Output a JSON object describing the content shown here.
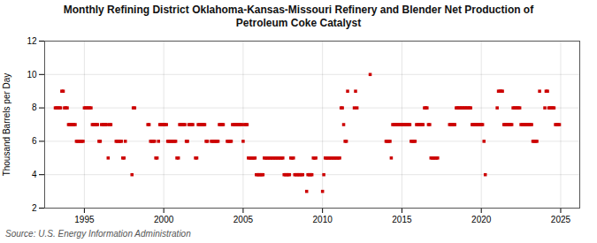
{
  "chart_data": {
    "type": "scatter",
    "title": "Monthly Refining District Oklahoma-Kansas-Missouri Refinery and Blender Net Production of\nPetroleum Coke Catalyst",
    "ylabel": "Thousand Barrels per Day",
    "source": "Source: U.S. Energy Information Administration",
    "color": "#cc0000",
    "marker": "square",
    "grid": true,
    "xlim": [
      1992.5,
      2026.2
    ],
    "xticks": [
      1995,
      2000,
      2005,
      2010,
      2015,
      2020,
      2025
    ],
    "ylim": [
      2,
      12
    ],
    "yticks": [
      2,
      4,
      6,
      8,
      10,
      12
    ],
    "x": [
      1993.17,
      1993.25,
      1993.33,
      1993.42,
      1993.5,
      1993.58,
      1993.67,
      1993.75,
      1993.83,
      1993.92,
      1994.0,
      1994.08,
      1994.17,
      1994.25,
      1994.33,
      1994.42,
      1994.5,
      1994.58,
      1994.67,
      1994.75,
      1994.83,
      1994.92,
      1995.0,
      1995.08,
      1995.17,
      1995.25,
      1995.33,
      1995.42,
      1995.5,
      1995.58,
      1995.67,
      1995.75,
      1995.83,
      1995.92,
      1996.0,
      1996.08,
      1996.17,
      1996.25,
      1996.33,
      1996.42,
      1996.5,
      1996.58,
      1996.67,
      1997.0,
      1997.08,
      1997.17,
      1997.25,
      1997.33,
      1997.42,
      1997.5,
      1997.58,
      1998.0,
      1998.08,
      1998.17,
      1999.0,
      1999.08,
      1999.17,
      1999.25,
      1999.33,
      1999.42,
      1999.5,
      1999.58,
      1999.67,
      1999.75,
      1999.83,
      1999.92,
      2000.0,
      2000.08,
      2000.17,
      2000.25,
      2000.33,
      2000.42,
      2000.5,
      2000.58,
      2000.67,
      2000.75,
      2000.83,
      2000.92,
      2001.0,
      2001.08,
      2001.17,
      2001.25,
      2001.33,
      2001.42,
      2001.5,
      2001.58,
      2001.67,
      2001.75,
      2001.83,
      2002.0,
      2002.08,
      2002.17,
      2002.25,
      2002.33,
      2002.42,
      2002.5,
      2002.58,
      2002.67,
      2002.75,
      2003.0,
      2003.08,
      2003.17,
      2003.25,
      2003.33,
      2003.42,
      2003.5,
      2003.58,
      2003.67,
      2003.75,
      2004.0,
      2004.08,
      2004.17,
      2004.25,
      2004.33,
      2004.42,
      2004.5,
      2004.58,
      2004.67,
      2004.75,
      2004.83,
      2004.92,
      2005.0,
      2005.08,
      2005.17,
      2005.25,
      2005.33,
      2005.42,
      2005.5,
      2005.58,
      2005.67,
      2005.75,
      2005.83,
      2005.92,
      2006.0,
      2006.08,
      2006.17,
      2006.25,
      2006.33,
      2006.42,
      2006.5,
      2006.58,
      2006.67,
      2006.75,
      2006.83,
      2006.92,
      2007.0,
      2007.08,
      2007.17,
      2007.25,
      2007.33,
      2007.42,
      2007.5,
      2007.58,
      2007.67,
      2007.75,
      2007.83,
      2007.92,
      2008.0,
      2008.08,
      2008.17,
      2008.25,
      2008.33,
      2008.42,
      2008.5,
      2008.58,
      2008.67,
      2008.75,
      2009.0,
      2009.08,
      2009.17,
      2009.25,
      2009.33,
      2009.42,
      2009.5,
      2009.58,
      2010.0,
      2010.08,
      2010.17,
      2010.25,
      2010.33,
      2010.42,
      2010.5,
      2010.58,
      2010.67,
      2010.75,
      2010.83,
      2010.92,
      2011.0,
      2011.08,
      2011.17,
      2011.25,
      2011.33,
      2011.42,
      2011.5,
      2011.58,
      2012.0,
      2012.08,
      2012.17,
      2013.0,
      2014.0,
      2014.08,
      2014.17,
      2014.25,
      2014.33,
      2014.42,
      2014.5,
      2014.58,
      2014.67,
      2014.75,
      2014.83,
      2014.92,
      2015.0,
      2015.08,
      2015.17,
      2015.25,
      2015.33,
      2015.42,
      2015.5,
      2015.58,
      2015.67,
      2015.75,
      2015.83,
      2015.92,
      2016.0,
      2016.08,
      2016.17,
      2016.25,
      2016.33,
      2016.42,
      2016.5,
      2016.58,
      2016.67,
      2016.75,
      2016.83,
      2016.92,
      2017.0,
      2017.08,
      2017.17,
      2017.25,
      2018.0,
      2018.08,
      2018.17,
      2018.25,
      2018.33,
      2018.42,
      2018.5,
      2018.58,
      2018.67,
      2018.75,
      2018.83,
      2018.92,
      2019.0,
      2019.08,
      2019.17,
      2019.25,
      2019.33,
      2019.42,
      2019.5,
      2019.58,
      2019.67,
      2019.75,
      2019.83,
      2019.92,
      2020.0,
      2020.08,
      2020.17,
      2020.25,
      2021.0,
      2021.08,
      2021.17,
      2021.25,
      2021.33,
      2021.42,
      2021.5,
      2021.58,
      2021.67,
      2021.75,
      2021.83,
      2021.92,
      2022.0,
      2022.08,
      2022.17,
      2022.25,
      2022.33,
      2022.42,
      2022.5,
      2022.58,
      2022.67,
      2022.75,
      2022.83,
      2022.92,
      2023.0,
      2023.08,
      2023.17,
      2023.25,
      2023.33,
      2023.42,
      2023.5,
      2023.67,
      2024.0,
      2024.08,
      2024.17,
      2024.25,
      2024.33,
      2024.42,
      2024.5,
      2024.58,
      2024.67,
      2024.75,
      2024.83,
      2024.92
    ],
    "values": [
      8,
      8,
      8,
      8,
      8,
      9,
      9,
      8,
      8,
      8,
      7,
      7,
      7,
      7,
      7,
      7,
      6,
      6,
      6,
      6,
      6,
      6,
      8,
      8,
      8,
      8,
      8,
      8,
      7,
      7,
      7,
      7,
      7,
      6,
      6,
      7,
      7,
      7,
      7,
      7,
      5,
      7,
      7,
      6,
      6,
      6,
      6,
      6,
      5,
      5,
      6,
      4,
      8,
      8,
      7,
      7,
      6,
      6,
      6,
      6,
      5,
      5,
      6,
      7,
      7,
      7,
      7,
      7,
      7,
      6,
      6,
      6,
      6,
      6,
      6,
      6,
      5,
      5,
      7,
      7,
      7,
      7,
      7,
      6,
      6,
      7,
      7,
      7,
      7,
      5,
      5,
      7,
      7,
      7,
      7,
      7,
      7,
      6,
      6,
      6,
      6,
      6,
      6,
      6,
      6,
      7,
      7,
      7,
      7,
      6,
      6,
      6,
      6,
      7,
      7,
      7,
      7,
      7,
      7,
      7,
      7,
      6,
      7,
      7,
      7,
      5,
      5,
      5,
      5,
      5,
      5,
      4,
      4,
      4,
      4,
      4,
      4,
      5,
      5,
      5,
      5,
      5,
      5,
      5,
      5,
      5,
      5,
      5,
      5,
      5,
      5,
      5,
      4,
      4,
      4,
      4,
      4,
      5,
      5,
      5,
      4,
      4,
      4,
      4,
      4,
      4,
      4,
      3,
      4,
      4,
      4,
      4,
      5,
      5,
      5,
      3,
      4,
      5,
      5,
      5,
      5,
      5,
      5,
      5,
      5,
      5,
      5,
      5,
      5,
      8,
      8,
      7,
      6,
      6,
      9,
      8,
      9,
      8,
      10,
      6,
      6,
      6,
      6,
      5,
      7,
      7,
      7,
      7,
      7,
      7,
      7,
      7,
      7,
      7,
      7,
      7,
      7,
      7,
      6,
      6,
      6,
      6,
      7,
      7,
      7,
      7,
      7,
      7,
      8,
      8,
      8,
      7,
      7,
      5,
      5,
      5,
      5,
      5,
      5,
      7,
      7,
      7,
      7,
      7,
      8,
      8,
      8,
      8,
      8,
      8,
      8,
      8,
      8,
      8,
      8,
      8,
      7,
      7,
      7,
      7,
      7,
      7,
      7,
      7,
      7,
      6,
      4,
      8,
      9,
      9,
      9,
      9,
      7,
      7,
      7,
      7,
      7,
      7,
      7,
      8,
      8,
      8,
      8,
      8,
      8,
      7,
      7,
      7,
      7,
      7,
      7,
      7,
      7,
      7,
      6,
      6,
      6,
      6,
      9,
      8,
      9,
      9,
      8,
      8,
      8,
      8,
      8,
      7,
      7,
      7,
      7
    ]
  }
}
